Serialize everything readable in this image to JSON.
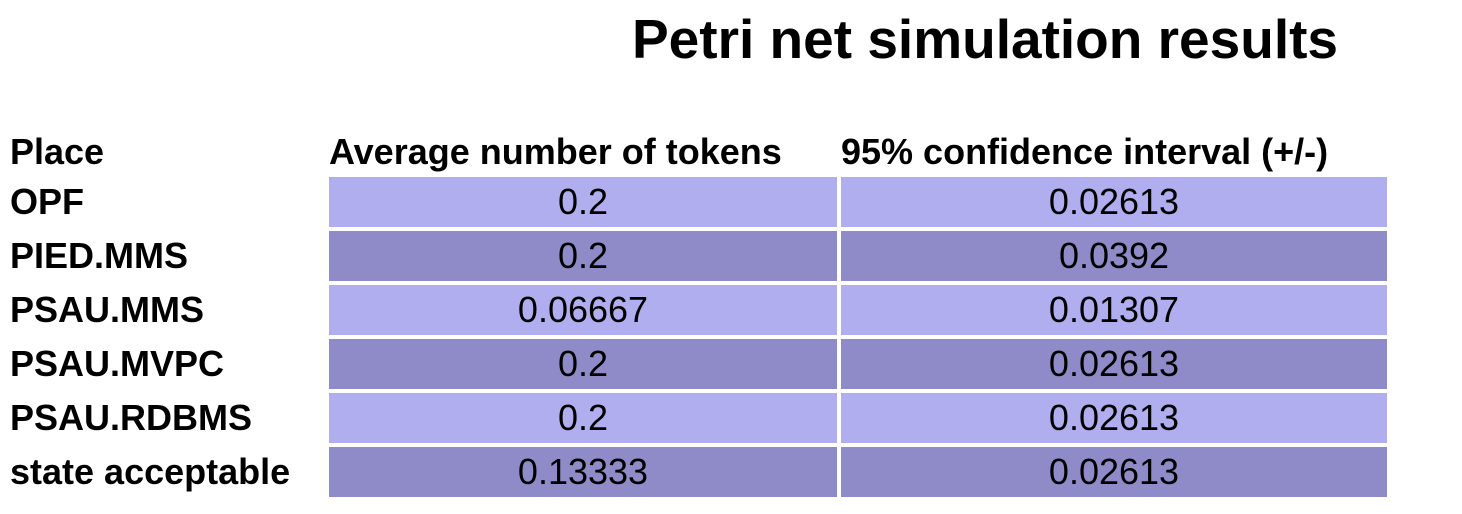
{
  "title": "Petri net simulation results",
  "table": {
    "headers": {
      "place": "Place",
      "average": "Average number of tokens",
      "confidence": "95% confidence interval (+/-)"
    },
    "rows": [
      {
        "place": "OPF",
        "average": "0.2",
        "confidence": "0.02613"
      },
      {
        "place": "PIED.MMS",
        "average": "0.2",
        "confidence": "0.0392"
      },
      {
        "place": "PSAU.MMS",
        "average": "0.06667",
        "confidence": "0.01307"
      },
      {
        "place": "PSAU.MVPC",
        "average": "0.2",
        "confidence": "0.02613"
      },
      {
        "place": "PSAU.RDBMS",
        "average": "0.2",
        "confidence": "0.02613"
      },
      {
        "place": "state acceptable",
        "average": "0.13333",
        "confidence": "0.02613"
      }
    ]
  },
  "colors": {
    "row_light": "#b0aeee",
    "row_dark": "#8f8bc8"
  }
}
